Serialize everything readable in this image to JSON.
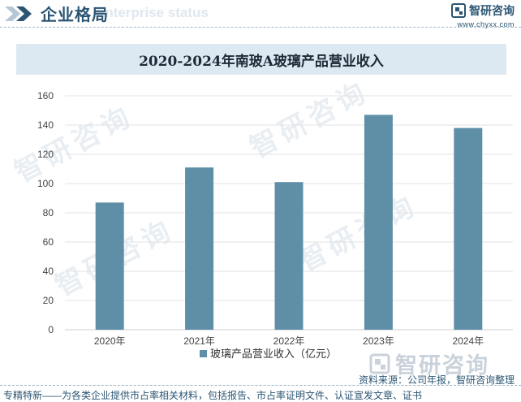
{
  "header": {
    "title": "企业格局",
    "subtitle": "Enterprise status"
  },
  "brand": {
    "name": "智研咨询",
    "url": "www.chyxx.com"
  },
  "watermark": {
    "text": "智研咨询"
  },
  "chart_data": {
    "type": "bar",
    "title": "2020-2024年南玻A玻璃产品营业收入",
    "categories": [
      "2020年",
      "2021年",
      "2022年",
      "2023年",
      "2024年"
    ],
    "series": [
      {
        "name": "玻璃产品营业收入（亿元）",
        "values": [
          87,
          111,
          101,
          147,
          138
        ],
        "color": "#5f8fa7"
      }
    ],
    "ylim": [
      0,
      160
    ],
    "yticks": [
      0,
      20,
      40,
      60,
      80,
      100,
      120,
      140,
      160
    ],
    "grid": true,
    "legend_position": "bottom",
    "xlabel": "",
    "ylabel": ""
  },
  "footer": {
    "logo_text": "智研咨询",
    "source": "资料来源：公司年报，智研咨询整理",
    "tagline": "专精特新——为各类企业提供市占率相关材料，包括报告、市占率证明文件、认证宣发文章、证书"
  }
}
